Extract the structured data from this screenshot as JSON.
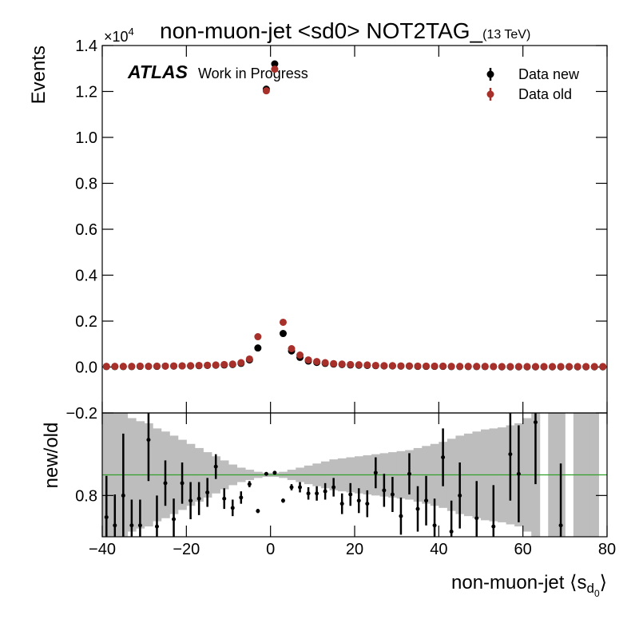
{
  "chart_data": [
    {
      "type": "scatter",
      "title": "non-muon-jet <sd0> NOT2TAG_",
      "subtitle": "(13 TeV)",
      "multiplier": "×10",
      "multiplier_exp": "4",
      "ylabel": "Events",
      "atlas": "ATLAS",
      "atlas_note": "Work in Progress",
      "legend": "upper right",
      "xlim": [
        -40,
        80
      ],
      "ylim": [
        -0.2,
        1.4
      ],
      "yticks": [
        {
          "value": -0.2,
          "label": "−0.2"
        },
        {
          "value": 0,
          "label": "0.0"
        },
        0.2,
        0.4,
        0.6,
        0.8,
        {
          "value": 1,
          "label": "1.0"
        },
        1.2,
        1.4
      ],
      "x": [
        -39,
        -37,
        -35,
        -33,
        -31,
        -29,
        -27,
        -25,
        -23,
        -21,
        -19,
        -17,
        -15,
        -13,
        -11,
        -9,
        -7,
        -5,
        -3,
        -1,
        1,
        3,
        5,
        7,
        9,
        11,
        13,
        15,
        17,
        19,
        21,
        23,
        25,
        27,
        29,
        31,
        33,
        35,
        37,
        39,
        41,
        43,
        45,
        47,
        49,
        51,
        53,
        55,
        57,
        59,
        61,
        63,
        65,
        67,
        69,
        71,
        73,
        75,
        77,
        79
      ],
      "series": [
        {
          "name": "Data new",
          "color": "#000000",
          "values": [
            0.002,
            0.002,
            0.002,
            0.002,
            0.003,
            0.003,
            0.003,
            0.004,
            0.004,
            0.005,
            0.005,
            0.006,
            0.007,
            0.008,
            0.009,
            0.011,
            0.016,
            0.031,
            0.083,
            1.21,
            1.32,
            0.146,
            0.07,
            0.042,
            0.026,
            0.02,
            0.016,
            0.013,
            0.011,
            0.009,
            0.008,
            0.007,
            0.006,
            0.005,
            0.005,
            0.004,
            0.004,
            0.003,
            0.003,
            0.003,
            0.003,
            0.002,
            0.002,
            0.002,
            0.002,
            0.002,
            0.002,
            0.001,
            0.001,
            0.001,
            0.001,
            0.001,
            0.001,
            0.001,
            0.001,
            0.001,
            0.001,
            0.001,
            0.001,
            0.001
          ]
        },
        {
          "name": "Data old",
          "color": "#a8302a",
          "values": [
            0.003,
            0.003,
            0.003,
            0.003,
            0.004,
            0.003,
            0.004,
            0.004,
            0.005,
            0.005,
            0.006,
            0.007,
            0.008,
            0.009,
            0.011,
            0.013,
            0.019,
            0.035,
            0.132,
            1.203,
            1.297,
            0.195,
            0.08,
            0.052,
            0.031,
            0.024,
            0.019,
            0.015,
            0.013,
            0.011,
            0.01,
            0.009,
            0.007,
            0.006,
            0.006,
            0.005,
            0.005,
            0.004,
            0.004,
            0.004,
            0.004,
            0.003,
            0.003,
            0.003,
            0.003,
            0.003,
            0.002,
            0.002,
            0.002,
            0.002,
            0.002,
            0.002,
            0.002,
            0.002,
            0.002,
            0.002,
            0.002,
            0.002,
            0.002,
            0.002
          ]
        }
      ]
    },
    {
      "type": "ratio",
      "ylabel": "new/old",
      "xlabel": "non-muon-jet ⟨s",
      "xlabel_sub": "d",
      "xlabel_subsub": "0",
      "xlabel_end": "⟩",
      "xlim": [
        -40,
        80
      ],
      "xticks": [
        {
          "value": -40,
          "label": "−40"
        },
        {
          "value": -20,
          "label": "−20"
        },
        0,
        20,
        40,
        60,
        80
      ],
      "ylim": [
        0.4,
        1.6
      ],
      "yticks": [
        0.8
      ],
      "hline": 1,
      "hline_color": "#33a02c",
      "color": "#000000",
      "band_color": "#bdbdbd",
      "values": [
        0.59,
        0.51,
        0.8,
        0.51,
        0.51,
        1.34,
        0.5,
        0.92,
        0.57,
        0.92,
        0.75,
        0.77,
        0.83,
        1.08,
        0.77,
        0.68,
        0.78,
        0.91,
        0.65,
        1.01,
        1.02,
        0.75,
        0.88,
        0.88,
        0.82,
        0.82,
        0.84,
        0.88,
        0.72,
        0.81,
        0.75,
        0.72,
        1.02,
        0.85,
        0.81,
        0.6,
        1.01,
        0.67,
        0.75,
        0.51,
        1.17,
        0.45,
        0.8,
        null,
        0.58,
        null,
        0.5,
        null,
        1.2,
        1.01,
        null,
        1.51,
        null,
        null,
        0.51,
        null,
        null,
        null,
        null,
        null
      ],
      "errors": [
        0.4,
        0.3,
        0.6,
        0.25,
        0.25,
        0.4,
        0.3,
        0.22,
        0.2,
        0.2,
        0.18,
        0.16,
        0.14,
        0.12,
        0.1,
        0.08,
        0.06,
        0.03,
        0.02,
        0.01,
        0.01,
        0.02,
        0.03,
        0.05,
        0.06,
        0.07,
        0.08,
        0.09,
        0.1,
        0.11,
        0.12,
        0.13,
        0.15,
        0.16,
        0.17,
        0.18,
        0.2,
        0.22,
        0.24,
        0.26,
        0.28,
        0.3,
        0.32,
        null,
        0.36,
        null,
        0.4,
        null,
        0.45,
        0.47,
        null,
        0.6,
        null,
        null,
        0.6,
        null,
        null,
        null,
        null,
        null
      ],
      "band": [
        0.6,
        0.6,
        0.6,
        0.55,
        0.52,
        0.5,
        0.45,
        0.42,
        0.38,
        0.34,
        0.3,
        0.26,
        0.22,
        0.18,
        0.14,
        0.1,
        0.07,
        0.05,
        0.03,
        0.02,
        0.02,
        0.03,
        0.05,
        0.07,
        0.09,
        0.11,
        0.13,
        0.15,
        0.16,
        0.17,
        0.18,
        0.19,
        0.2,
        0.21,
        0.22,
        0.23,
        0.24,
        0.26,
        0.28,
        0.3,
        0.32,
        0.35,
        0.38,
        0.4,
        0.42,
        0.44,
        0.45,
        0.46,
        0.48,
        0.5,
        0.55,
        0.6,
        null,
        0.6,
        0.6,
        null,
        0.6,
        0.6,
        0.6,
        null
      ]
    }
  ]
}
